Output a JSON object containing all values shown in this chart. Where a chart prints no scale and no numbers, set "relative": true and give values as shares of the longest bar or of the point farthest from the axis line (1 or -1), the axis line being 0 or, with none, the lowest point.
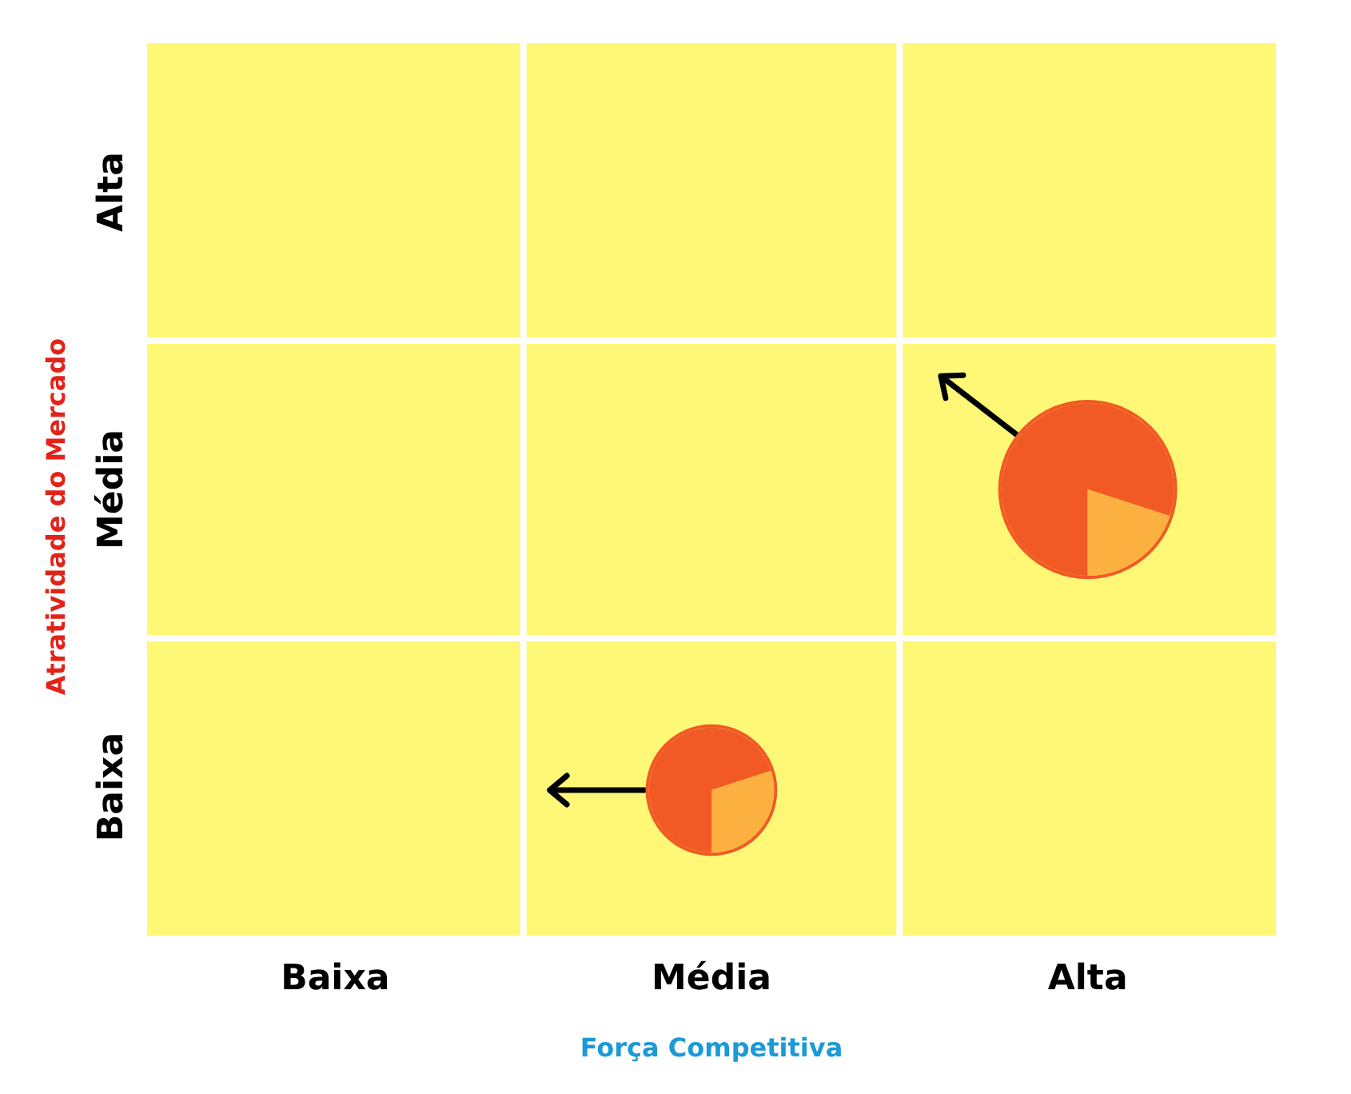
{
  "chart_data": [
    {
      "type": "bubble",
      "categories": [
        "Baixa",
        "Média",
        "Alta"
      ],
      "y_categories": [
        "Alta",
        "Média",
        "Baixa"
      ],
      "xlabel": "Força Competitiva",
      "ylabel": "Atratividade do Mercado",
      "relative": true,
      "series": [
        {
          "color": "#f15a24",
          "values": [
            null,
            0,
            1
          ],
          "sizes": [
            null,
            0.54,
            1
          ]
        }
      ]
    },
    {
      "type": "pie",
      "categories": [
        null,
        null
      ],
      "values": [
        70,
        30
      ],
      "colors": [
        "#f15a24",
        "#fbb040"
      ]
    },
    {
      "type": "pie",
      "categories": [
        null,
        null
      ],
      "values": [
        80,
        20
      ],
      "colors": [
        "#f15a24",
        "#fbb040"
      ]
    }
  ]
}
